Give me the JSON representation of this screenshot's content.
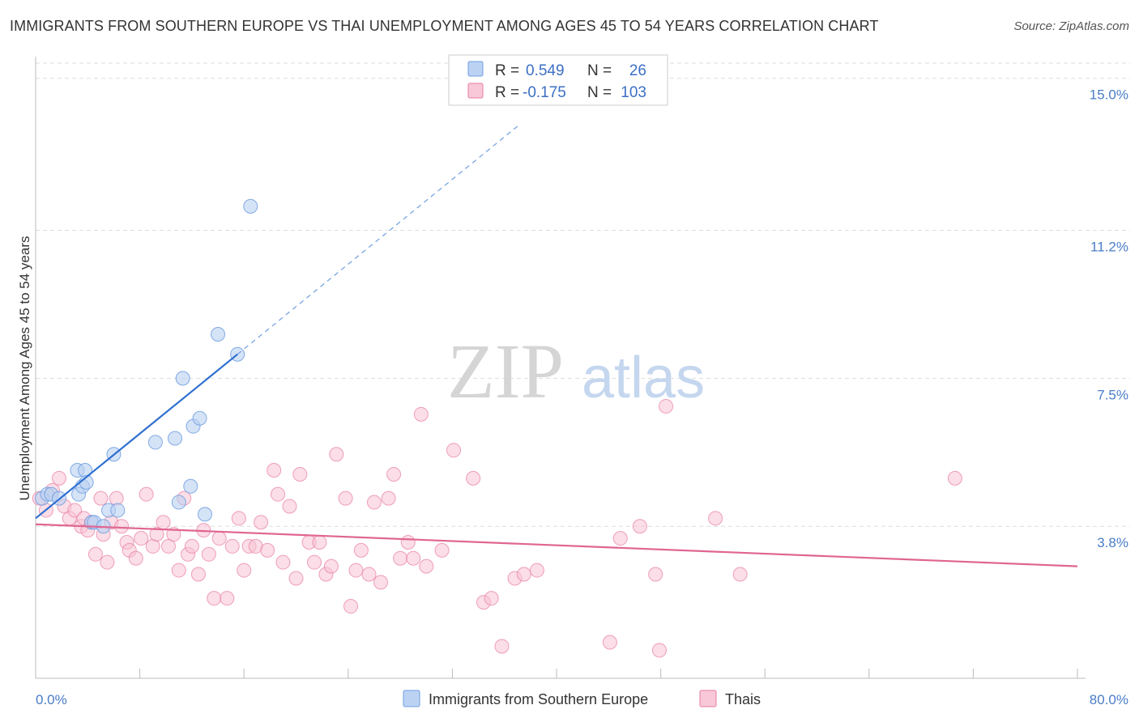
{
  "header": {
    "title": "IMMIGRANTS FROM SOUTHERN EUROPE VS THAI UNEMPLOYMENT AMONG AGES 45 TO 54 YEARS CORRELATION CHART",
    "source": "Source: ZipAtlas.com"
  },
  "watermark": {
    "zip": "ZIP",
    "atlas": "atlas"
  },
  "legend": {
    "r_label": "R =",
    "n_label": "N =",
    "rows": [
      {
        "r": "0.549",
        "n": "26",
        "color": "#a9c4ef"
      },
      {
        "r": "-0.175",
        "n": "103",
        "color": "#f5b7cb"
      }
    ]
  },
  "bottom_legend": [
    {
      "label": "Immigrants from Southern Europe",
      "color": "#a9c4ef"
    },
    {
      "label": "Thais",
      "color": "#f5b7cb"
    }
  ],
  "chart_data": {
    "type": "scatter",
    "title": "IMMIGRANTS FROM SOUTHERN EUROPE VS THAI UNEMPLOYMENT AMONG AGES 45 TO 54 YEARS CORRELATION CHART",
    "xlabel": "",
    "ylabel": "Unemployment Among Ages 45 to 54 years",
    "xlim": [
      0,
      80
    ],
    "ylim": [
      0,
      15.5
    ],
    "y_ticks": [
      3.8,
      7.5,
      11.2,
      15.0
    ],
    "y_tick_labels": [
      "3.8%",
      "7.5%",
      "11.2%",
      "15.0%"
    ],
    "x_tick_labels": [
      "0.0%",
      "80.0%"
    ],
    "grid": "horizontal dashed",
    "series": [
      {
        "name": "Immigrants from Southern Europe",
        "color": "#6f9ee0",
        "fill": "#b9d0f2",
        "r": 0.549,
        "n": 26,
        "trend": {
          "x_from": 0,
          "y_from": 4.0,
          "x_solid_to": 15.5,
          "y_solid_to": 8.1,
          "x_dash_to": 37,
          "y_dash_to": 13.8
        },
        "points": [
          [
            0.5,
            4.5
          ],
          [
            0.9,
            4.6
          ],
          [
            1.2,
            4.6
          ],
          [
            1.8,
            4.5
          ],
          [
            3.2,
            5.2
          ],
          [
            3.3,
            4.6
          ],
          [
            3.6,
            4.8
          ],
          [
            3.8,
            5.2
          ],
          [
            3.9,
            4.9
          ],
          [
            4.3,
            3.9
          ],
          [
            4.5,
            3.9
          ],
          [
            5.2,
            3.8
          ],
          [
            5.6,
            4.2
          ],
          [
            6.0,
            5.6
          ],
          [
            6.3,
            4.2
          ],
          [
            9.2,
            5.9
          ],
          [
            10.7,
            6.0
          ],
          [
            11.0,
            4.4
          ],
          [
            11.3,
            7.5
          ],
          [
            11.9,
            4.8
          ],
          [
            12.1,
            6.3
          ],
          [
            12.6,
            6.5
          ],
          [
            13.0,
            4.1
          ],
          [
            14.0,
            8.6
          ],
          [
            15.5,
            8.1
          ],
          [
            16.5,
            11.8
          ]
        ]
      },
      {
        "name": "Thais",
        "color": "#e87aa0",
        "fill": "#f7c3d4",
        "r": -0.175,
        "n": 103,
        "trend": {
          "x_from": 0,
          "y_from": 3.85,
          "x_to": 80,
          "y_to": 2.8
        },
        "points": [
          [
            0.3,
            4.5
          ],
          [
            0.8,
            4.2
          ],
          [
            1.3,
            4.7
          ],
          [
            1.8,
            5.0
          ],
          [
            2.2,
            4.3
          ],
          [
            2.6,
            4.0
          ],
          [
            3.0,
            4.2
          ],
          [
            3.5,
            3.8
          ],
          [
            3.7,
            4.0
          ],
          [
            4.0,
            3.7
          ],
          [
            4.3,
            3.9
          ],
          [
            4.6,
            3.1
          ],
          [
            5.0,
            4.5
          ],
          [
            5.2,
            3.6
          ],
          [
            5.5,
            2.9
          ],
          [
            5.8,
            3.9
          ],
          [
            6.2,
            4.5
          ],
          [
            6.6,
            3.8
          ],
          [
            7.0,
            3.4
          ],
          [
            7.2,
            3.2
          ],
          [
            7.7,
            3.0
          ],
          [
            8.1,
            3.5
          ],
          [
            8.5,
            4.6
          ],
          [
            9.0,
            3.3
          ],
          [
            9.3,
            3.6
          ],
          [
            9.8,
            3.9
          ],
          [
            10.2,
            3.3
          ],
          [
            10.6,
            3.6
          ],
          [
            11.0,
            2.7
          ],
          [
            11.4,
            4.5
          ],
          [
            11.7,
            3.1
          ],
          [
            12.0,
            3.3
          ],
          [
            12.5,
            2.6
          ],
          [
            12.9,
            3.7
          ],
          [
            13.3,
            3.1
          ],
          [
            13.7,
            2.0
          ],
          [
            14.1,
            3.5
          ],
          [
            14.7,
            2.0
          ],
          [
            15.1,
            3.3
          ],
          [
            15.6,
            4.0
          ],
          [
            16.0,
            2.7
          ],
          [
            16.4,
            3.3
          ],
          [
            16.9,
            3.3
          ],
          [
            17.3,
            3.9
          ],
          [
            17.8,
            3.2
          ],
          [
            18.3,
            5.2
          ],
          [
            18.6,
            4.6
          ],
          [
            19.0,
            2.9
          ],
          [
            19.5,
            4.3
          ],
          [
            20.0,
            2.5
          ],
          [
            20.3,
            5.1
          ],
          [
            21.0,
            3.4
          ],
          [
            21.4,
            2.9
          ],
          [
            21.8,
            3.4
          ],
          [
            22.3,
            2.6
          ],
          [
            22.7,
            2.8
          ],
          [
            23.1,
            5.6
          ],
          [
            23.8,
            4.5
          ],
          [
            24.2,
            1.8
          ],
          [
            24.6,
            2.7
          ],
          [
            25.0,
            3.2
          ],
          [
            25.6,
            2.6
          ],
          [
            26.0,
            4.4
          ],
          [
            26.5,
            2.4
          ],
          [
            27.1,
            4.5
          ],
          [
            27.5,
            5.1
          ],
          [
            28.0,
            3.0
          ],
          [
            28.6,
            3.4
          ],
          [
            29.0,
            3.0
          ],
          [
            29.6,
            6.6
          ],
          [
            30.0,
            2.8
          ],
          [
            31.2,
            3.2
          ],
          [
            32.1,
            5.7
          ],
          [
            33.6,
            5.0
          ],
          [
            34.4,
            1.9
          ],
          [
            35.0,
            2.0
          ],
          [
            35.8,
            0.8
          ],
          [
            36.8,
            2.5
          ],
          [
            37.5,
            2.6
          ],
          [
            38.5,
            2.7
          ],
          [
            44.1,
            0.9
          ],
          [
            44.9,
            3.5
          ],
          [
            46.4,
            3.8
          ],
          [
            47.6,
            2.6
          ],
          [
            47.9,
            0.7
          ],
          [
            48.4,
            6.8
          ],
          [
            52.2,
            4.0
          ],
          [
            54.1,
            2.6
          ],
          [
            70.6,
            5.0
          ]
        ]
      }
    ]
  }
}
